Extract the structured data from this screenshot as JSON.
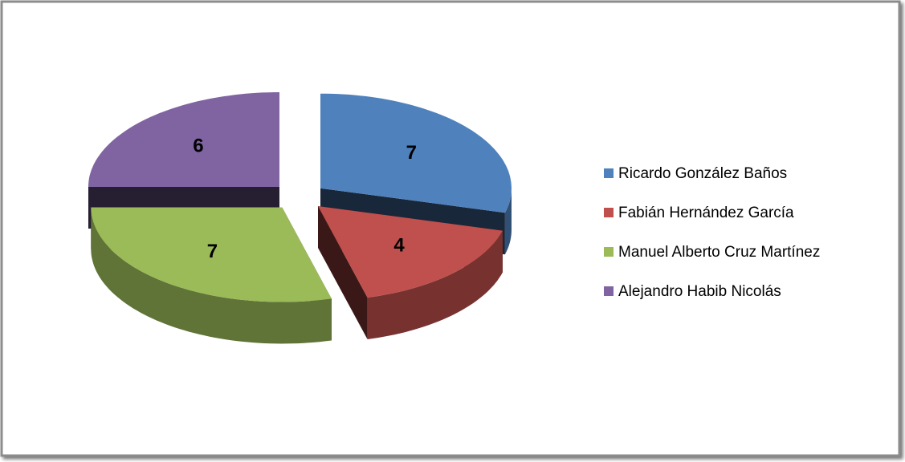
{
  "chart_data": {
    "type": "pie",
    "categories": [
      "Ricardo González Baños",
      "Fabián Hernández García",
      "Manuel Alberto Cruz Martínez",
      "Alejandro Habib Nicolás"
    ],
    "values": [
      7,
      4,
      7,
      6
    ],
    "colors": [
      "#4f81bd",
      "#c0504d",
      "#9bbb59",
      "#8064a2"
    ],
    "legend": "right"
  }
}
